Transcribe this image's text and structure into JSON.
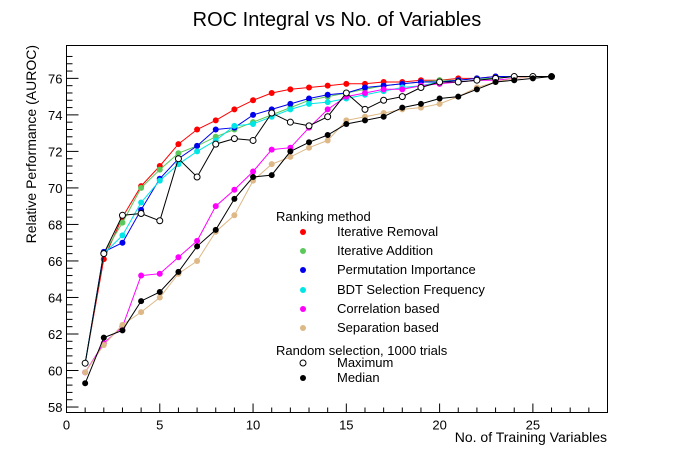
{
  "chart_data": {
    "type": "line",
    "title": "ROC Integral vs No. of Variables",
    "xlabel": "No. of Training Variables",
    "ylabel": "Relative Performance (AUROC)",
    "xlim": [
      0,
      29
    ],
    "ylim": [
      57.7,
      77.8
    ],
    "xticks": [
      0,
      5,
      10,
      15,
      20,
      25
    ],
    "yticks": [
      58,
      60,
      62,
      64,
      66,
      68,
      70,
      72,
      74,
      76
    ],
    "grid": false,
    "legend": {
      "placement": "center-right",
      "title": "Ranking method",
      "subtitle": "Random selection, 1000 trials"
    },
    "x": [
      1,
      2,
      3,
      4,
      5,
      6,
      7,
      8,
      9,
      10,
      11,
      12,
      13,
      14,
      15,
      16,
      17,
      18,
      19,
      20,
      21,
      22,
      23,
      24,
      25,
      26
    ],
    "series": [
      {
        "name": "Iterative Removal",
        "color": "#ff0000",
        "marker": "filled",
        "line_color": "#ff0000",
        "values": [
          60.4,
          66.1,
          68.4,
          70.1,
          71.2,
          72.4,
          73.2,
          73.7,
          74.3,
          74.8,
          75.2,
          75.4,
          75.5,
          75.6,
          75.7,
          75.7,
          75.8,
          75.8,
          75.9,
          75.9,
          76.0,
          76.0,
          76.1,
          76.1,
          76.1,
          76.1
        ]
      },
      {
        "name": "Iterative Addition",
        "color": "#5ac85a",
        "marker": "filled",
        "line_color": "#5ac85a",
        "values": [
          60.4,
          66.4,
          68.1,
          70.0,
          71.0,
          71.9,
          72.3,
          72.8,
          73.2,
          73.6,
          74.0,
          74.4,
          74.8,
          75.0,
          75.2,
          75.4,
          75.6,
          75.7,
          75.8,
          75.9,
          75.9,
          76.0,
          76.0,
          76.1,
          76.1,
          76.1
        ]
      },
      {
        "name": "Permutation Importance",
        "color": "#0000ee",
        "marker": "filled",
        "line_color": "#0000ee",
        "values": [
          60.4,
          66.5,
          67.0,
          68.8,
          70.5,
          71.6,
          72.3,
          73.2,
          73.3,
          74.0,
          74.3,
          74.6,
          74.9,
          75.1,
          75.2,
          75.5,
          75.6,
          75.7,
          75.8,
          75.8,
          75.9,
          76.0,
          76.1,
          76.1,
          76.1,
          76.1
        ]
      },
      {
        "name": "BDT Selection Frequency",
        "color": "#00e6e6",
        "marker": "filled",
        "line_color": "#00e6e6",
        "values": [
          60.4,
          66.4,
          67.4,
          69.2,
          70.4,
          71.3,
          72.0,
          72.6,
          73.4,
          73.5,
          73.9,
          74.3,
          74.6,
          74.7,
          74.9,
          75.1,
          75.3,
          75.5,
          75.6,
          75.8,
          75.8,
          75.9,
          76.0,
          76.1,
          76.1,
          76.1
        ]
      },
      {
        "name": "Correlation based",
        "color": "#ff00ff",
        "marker": "filled",
        "line_color": "#ff00ff",
        "values": [
          59.9,
          61.5,
          62.4,
          65.2,
          65.3,
          66.2,
          67.1,
          69.0,
          69.9,
          70.9,
          72.1,
          72.2,
          73.3,
          74.3,
          75.0,
          75.2,
          75.4,
          75.4,
          75.6,
          75.7,
          75.8,
          75.9,
          75.9,
          76.0,
          76.1,
          76.1
        ]
      },
      {
        "name": "Separation based",
        "color": "#deb887",
        "marker": "filled",
        "line_color": "#deb887",
        "values": [
          59.9,
          61.4,
          62.5,
          63.2,
          64.0,
          65.3,
          66.0,
          67.6,
          68.5,
          70.4,
          71.3,
          71.7,
          72.2,
          72.6,
          73.7,
          73.9,
          74.1,
          74.3,
          74.4,
          74.6,
          75.0,
          75.5,
          75.8,
          76.0,
          76.1,
          76.1
        ]
      },
      {
        "name": "Maximum",
        "color": "#000000",
        "marker": "open",
        "line_color": "#000000",
        "values": [
          60.4,
          66.4,
          68.5,
          68.6,
          68.2,
          71.6,
          70.6,
          72.4,
          72.7,
          72.6,
          74.1,
          73.6,
          73.4,
          73.9,
          75.2,
          74.3,
          74.8,
          75.0,
          75.5,
          75.8,
          75.8,
          75.9,
          76.0,
          76.1,
          76.1,
          76.1
        ]
      },
      {
        "name": "Median",
        "color": "#000000",
        "marker": "filled",
        "line_color": "#000000",
        "values": [
          59.3,
          61.8,
          62.2,
          63.8,
          64.3,
          65.4,
          66.8,
          67.7,
          69.4,
          70.6,
          70.7,
          72.0,
          72.5,
          72.9,
          73.5,
          73.7,
          73.9,
          74.4,
          74.6,
          74.9,
          75.0,
          75.4,
          75.8,
          75.9,
          76.0,
          76.1
        ]
      }
    ]
  }
}
